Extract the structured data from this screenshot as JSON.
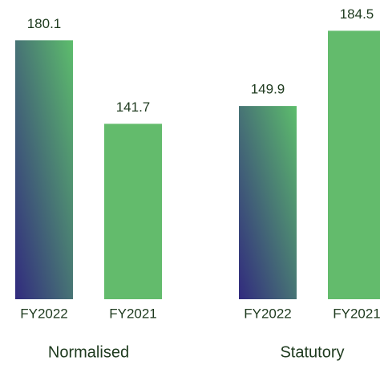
{
  "chart_data": {
    "type": "bar",
    "categories": [
      "Normalised",
      "Statutory"
    ],
    "series": [
      {
        "name": "FY2022",
        "color": [
          "#312a7e",
          "#5dbd6c"
        ],
        "values": [
          180.1,
          149.9
        ]
      },
      {
        "name": "FY2021",
        "color": "#63bb6c",
        "values": [
          141.7,
          184.5
        ]
      }
    ],
    "ylim": [
      61,
      185
    ]
  }
}
